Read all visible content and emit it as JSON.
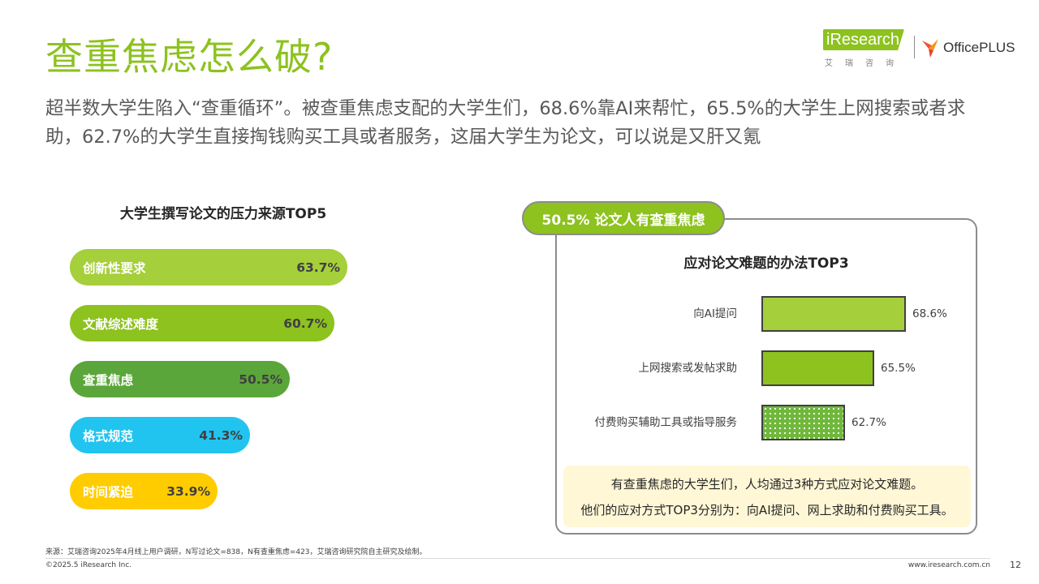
{
  "header": {
    "title": "查重焦虑怎么破?",
    "subtitle": "超半数大学生陷入“查重循环”。被查重焦虑支配的大学生们，68.6%靠AI来帮忙，65.5%的大学生上网搜索或者求助，62.7%的大学生直接掏钱购买工具或者服务，这届大学生为论文，可以说是又肝又氪"
  },
  "logos": {
    "iresearch_name": "iResearch",
    "iresearch_cn": "艾瑞咨询",
    "officeplus": "OfficePLUS"
  },
  "chart_data": [
    {
      "type": "bar",
      "title": "大学生撰写论文的压力来源TOP5",
      "categories": [
        "创新性要求",
        "文献综述难度",
        "查重焦虑",
        "格式规范",
        "时间紧迫"
      ],
      "values": [
        63.7,
        60.7,
        50.5,
        41.3,
        33.9
      ],
      "value_labels": [
        "63.7%",
        "60.7%",
        "50.5%",
        "41.3%",
        "33.9%"
      ],
      "colors": [
        "#a5cf3b",
        "#8dc21f",
        "#5ba63a",
        "#21c4ef",
        "#ffcc00"
      ]
    },
    {
      "type": "bar",
      "title": "应对论文难题的办法TOP3",
      "categories": [
        "向AI提问",
        "上网搜索或发帖求助",
        "付费购买辅助工具或指导服务"
      ],
      "values": [
        68.6,
        65.5,
        62.7
      ],
      "value_labels": [
        "68.6%",
        "65.5%",
        "62.7%"
      ],
      "colors": [
        "#a5cf3b",
        "#8dc21f",
        "#70b83b"
      ]
    }
  ],
  "panel": {
    "badge": "50.5% 论文人有查重焦虑",
    "note_line1": "有查重焦虑的大学生们，人均通过3种方式应对论文难题。",
    "note_line2": "他们的应对方式TOP3分别为：向AI提问、网上求助和付费购买工具。"
  },
  "footer": {
    "source": "来源：艾瑞咨询2025年4月线上用户调研，N写过论文=838，N有查重焦虑=423，艾瑞咨询研究院自主研究及绘制。",
    "copyright": "©2025.5 iResearch Inc.",
    "site": "www.iresearch.com.cn",
    "page": "12"
  }
}
